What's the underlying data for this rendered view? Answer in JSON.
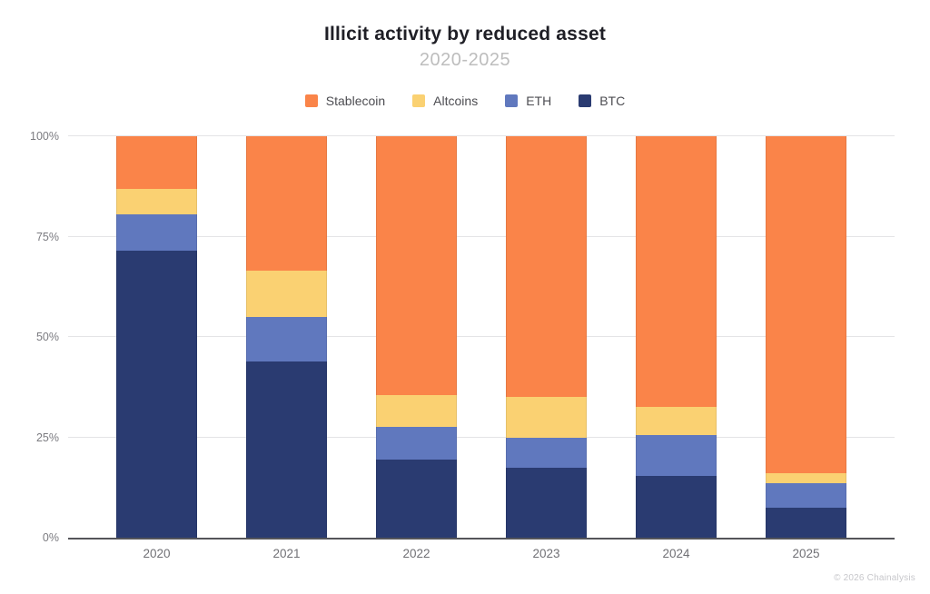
{
  "header": {
    "title": "Illicit activity by reduced asset",
    "subtitle": "2020-2025"
  },
  "footer": {
    "attribution": "© 2026 Chainalysis"
  },
  "colors": {
    "stablecoin": "#FA8449",
    "altcoins": "#FAD172",
    "eth": "#6078BE",
    "btc": "#2A3B71",
    "title_text": "#1f1f26",
    "subtitle_text": "#bdbdbd",
    "axis_text": "#7b7b80",
    "gridline": "#e4e4e6",
    "axis_line": "#55555a",
    "background": "#ffffff"
  },
  "chart_data": {
    "type": "bar",
    "variant": "stacked-100-percent",
    "title": "Illicit activity by reduced asset",
    "subtitle": "2020-2025",
    "xlabel": "",
    "ylabel": "",
    "categories": [
      "2020",
      "2021",
      "2022",
      "2023",
      "2024",
      "2025"
    ],
    "series": [
      {
        "name": "Stablecoin",
        "color": "#FA8449",
        "values": [
          13,
          33.5,
          64.5,
          65,
          67.5,
          84
        ]
      },
      {
        "name": "Altcoins",
        "color": "#FAD172",
        "values": [
          6.5,
          11.5,
          8,
          10,
          7,
          2.5
        ]
      },
      {
        "name": "ETH",
        "color": "#6078BE",
        "values": [
          9,
          11,
          8,
          7.5,
          10,
          6
        ]
      },
      {
        "name": "BTC",
        "color": "#2A3B71",
        "values": [
          71.5,
          44,
          19.5,
          17.5,
          15.5,
          7.5
        ]
      }
    ],
    "stack_order_top_to_bottom": [
      "Stablecoin",
      "Altcoins",
      "ETH",
      "BTC"
    ],
    "y_axis": {
      "range": [
        0,
        100
      ],
      "tick_values": [
        100,
        75,
        50,
        25,
        0
      ],
      "tick_labels": [
        "100%",
        "75%",
        "50%",
        "25%",
        "0%"
      ]
    },
    "legend": {
      "position": "top",
      "labels": [
        "Stablecoin",
        "Altcoins",
        "ETH",
        "BTC"
      ]
    },
    "grid": "horizontal",
    "units": "percent"
  }
}
